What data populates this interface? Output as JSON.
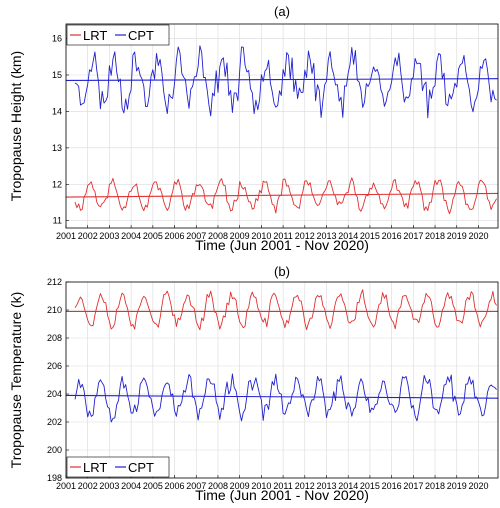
{
  "chart_data": [
    {
      "type": "line",
      "title": "(a)",
      "xlabel": "Time (Jun 2001 - Nov 2020)",
      "ylabel": "Tropopause Height (km)",
      "xlim": [
        2001.0,
        2020.9
      ],
      "ylim": [
        10.8,
        16.4
      ],
      "x_ticks": [
        2001,
        2002,
        2003,
        2004,
        2005,
        2006,
        2007,
        2008,
        2009,
        2010,
        2011,
        2012,
        2013,
        2014,
        2015,
        2016,
        2017,
        2018,
        2019,
        2020
      ],
      "y_ticks": [
        11,
        12,
        13,
        14,
        15,
        16
      ],
      "grid": true,
      "legend_position": "top-left",
      "series": [
        {
          "name": "LRT",
          "color": "#e03030",
          "mean": 11.7,
          "amplitude": 0.35,
          "noise": 0.13,
          "peak_month": 1.5,
          "seed": 11,
          "trend_line": [
            11.65,
            11.75
          ]
        },
        {
          "name": "CPT",
          "color": "#2020d0",
          "mean": 14.85,
          "amplitude": 0.6,
          "noise": 0.35,
          "peak_month": 2.5,
          "seed": 23,
          "trend_line": [
            14.85,
            14.9
          ]
        }
      ]
    },
    {
      "type": "line",
      "title": "(b)",
      "xlabel": "Time (Jun 2001 - Nov 2020)",
      "ylabel": "Tropopause Temperature (k)",
      "xlim": [
        2001.0,
        2020.9
      ],
      "ylim": [
        198,
        212
      ],
      "x_ticks": [
        2001,
        2002,
        2003,
        2004,
        2005,
        2006,
        2007,
        2008,
        2009,
        2010,
        2011,
        2012,
        2013,
        2014,
        2015,
        2016,
        2017,
        2018,
        2019,
        2020
      ],
      "y_ticks": [
        198,
        200,
        202,
        204,
        206,
        208,
        210,
        212
      ],
      "grid": true,
      "legend_position": "bottom-left",
      "series": [
        {
          "name": "LRT",
          "color": "#e03030",
          "mean": 210.0,
          "amplitude": 1.1,
          "noise": 0.35,
          "peak_month": 7.5,
          "seed": 37,
          "trend_line": [
            209.9,
            209.9
          ]
        },
        {
          "name": "CPT",
          "color": "#2020d0",
          "mean": 203.8,
          "amplitude": 1.2,
          "noise": 0.55,
          "peak_month": 7.5,
          "seed": 53,
          "trend_line": [
            203.9,
            203.7
          ]
        }
      ]
    }
  ]
}
